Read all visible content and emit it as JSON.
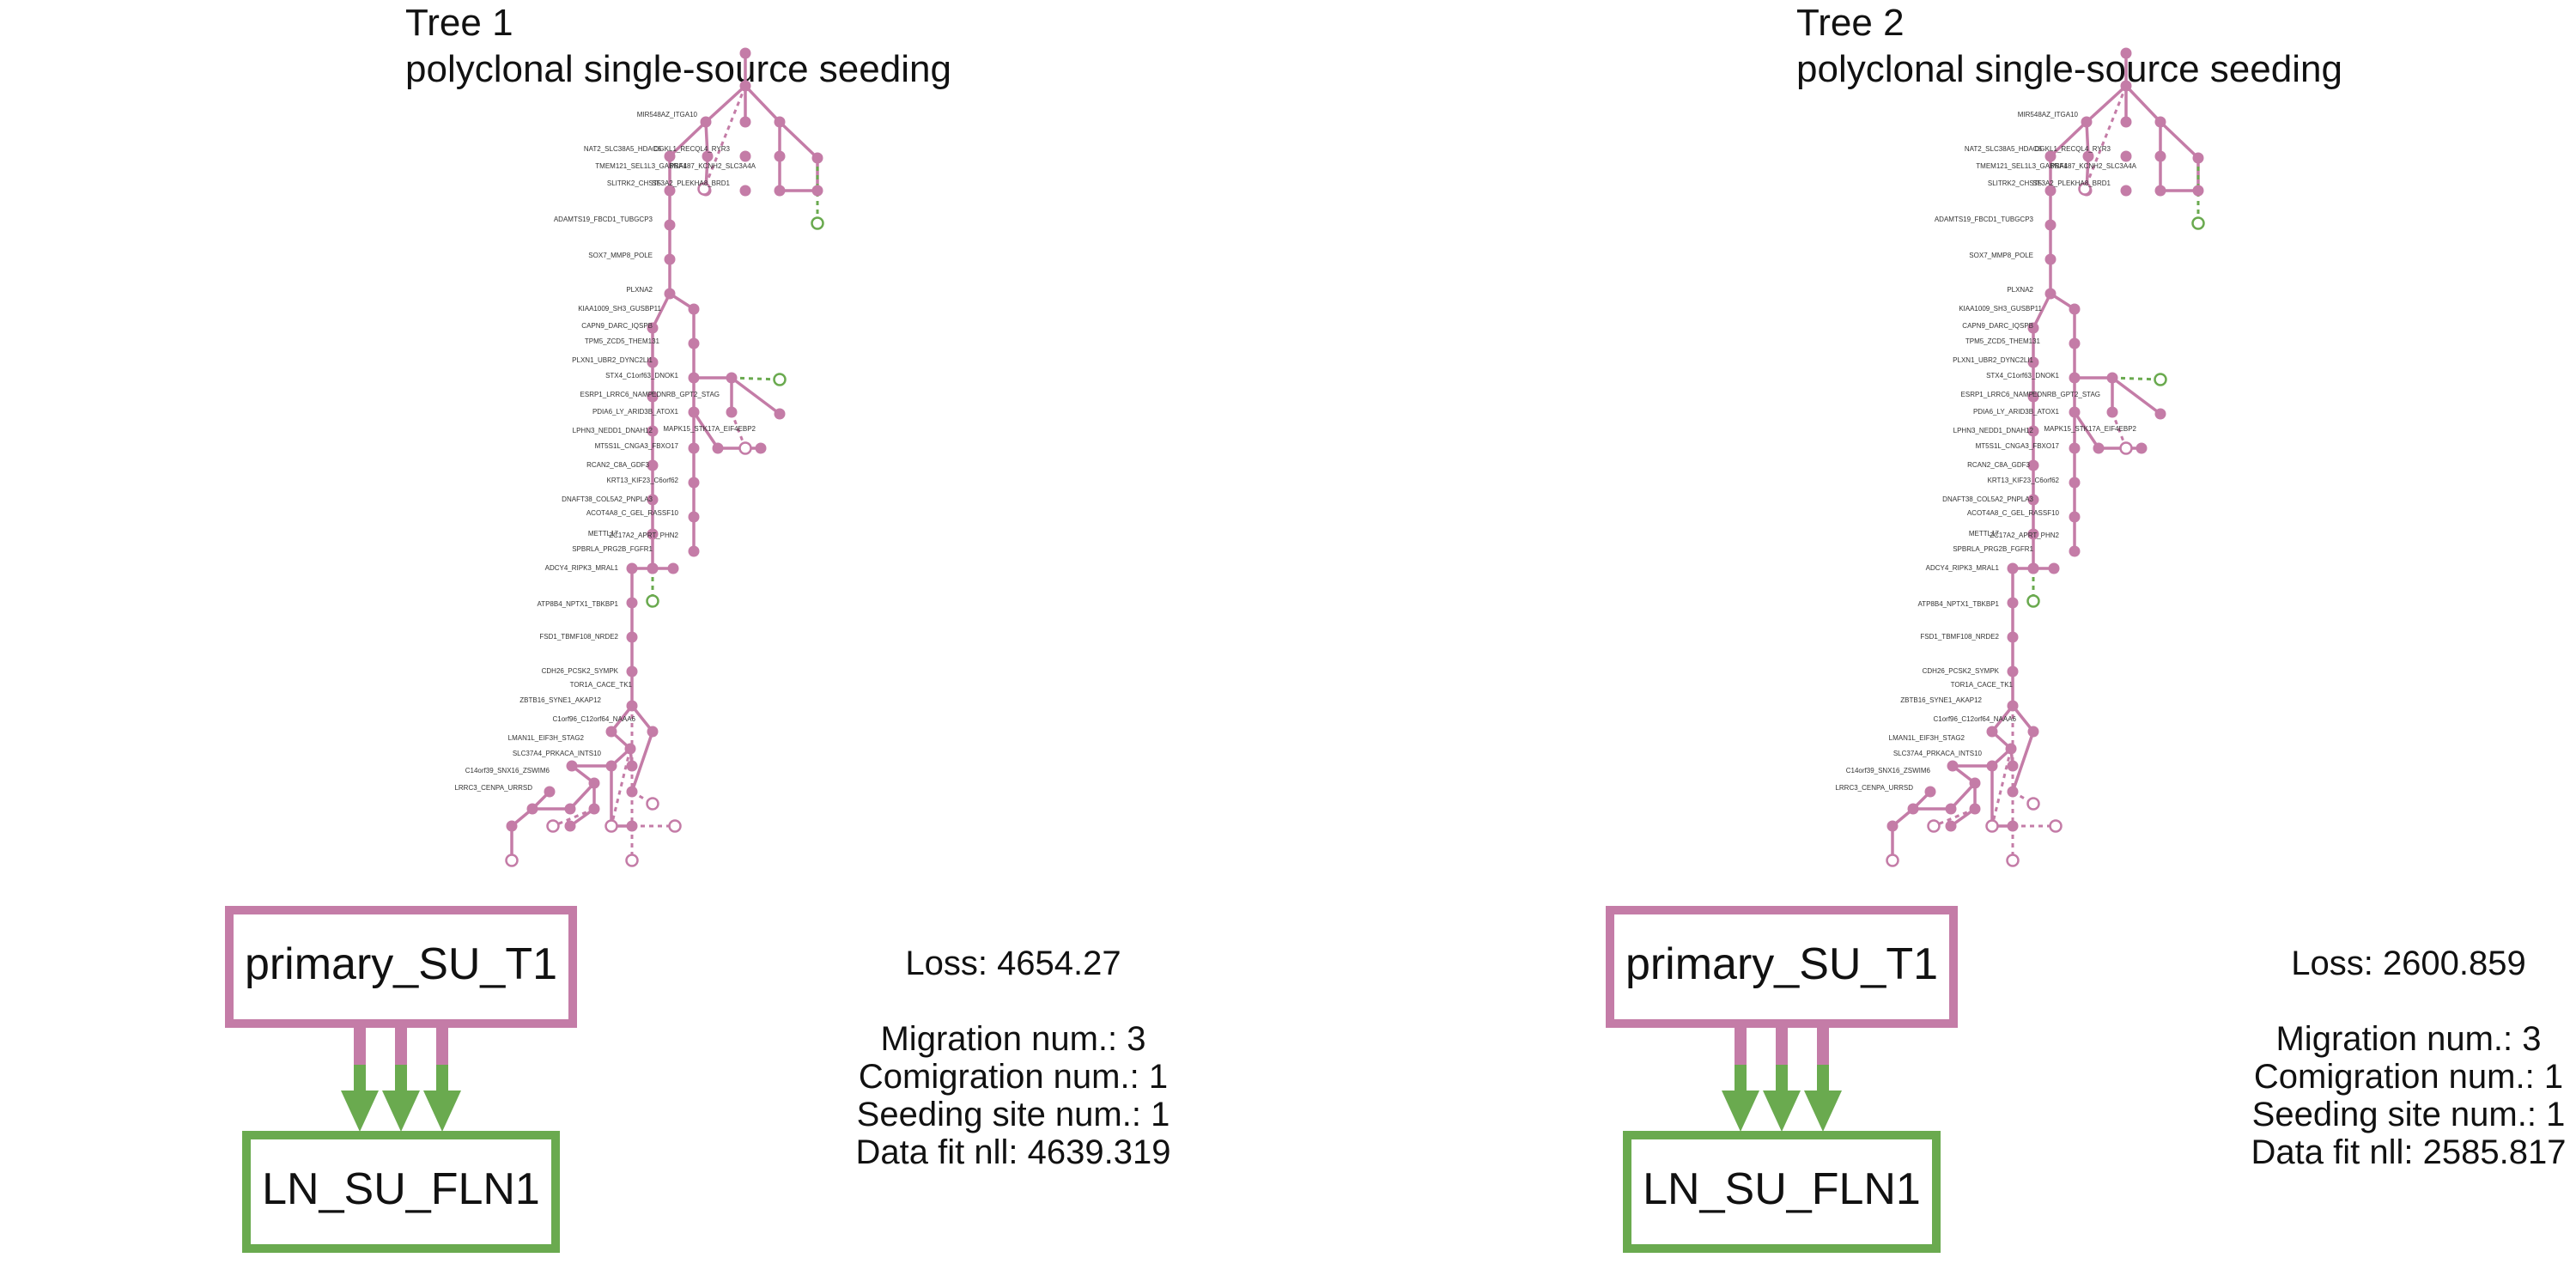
{
  "colors": {
    "primary": "#c47ca7",
    "lymph_node": "#6aaa4f",
    "text": "#111111"
  },
  "panels": [
    {
      "title": "Tree 1",
      "subtitle": "polyclonal single-source seeding",
      "source_site": "primary_SU_T1",
      "target_site": "LN_SU_FLN1",
      "migration_edges": 3,
      "stats": {
        "loss": "Loss: 4654.27",
        "migration": "Migration num.: 3",
        "comigration": "Comigration num.: 1",
        "seeding": "Seeding site num.: 1",
        "datafit": "Data fit nll: 4639.319"
      }
    },
    {
      "title": "Tree 2",
      "subtitle": "polyclonal single-source seeding",
      "source_site": "primary_SU_T1",
      "target_site": "LN_SU_FLN1",
      "migration_edges": 3,
      "stats": {
        "loss": "Loss: 2600.859",
        "migration": "Migration num.: 3",
        "comigration": "Comigration num.: 1",
        "seeding": "Seeding site num.: 1",
        "datafit": "Data fit nll: 2585.817"
      }
    }
  ],
  "tree_labels": [
    "MIR548AZ_ITGA10",
    "NAT2_SLC38A5_HDAC6",
    "DGKL1_RECQL4_RYR3",
    "TMEM121_SEL1L3_GABRA4",
    "PSF187_KCNH2_SLC3A4A",
    "SLITRK2_CHST5",
    "SF3A2_PLEKHA8_BRD1",
    "ADAMTS19_FBCD1_TUBGCP3",
    "SOX7_MMP8_POLE",
    "PLXNA2",
    "KIAA1009_SH3_GUSBP11",
    "CAPN9_DARC_IQSPB",
    "TPM5_ZCD5_THEM131",
    "PLXN1_UBR2_DYNC2LI1",
    "STX4_C1orf63_DNOK1",
    "ESRP1_LRRC6_NAMP",
    "EDNRB_GPT2_STAG",
    "PDIA6_LY_ARID3B_ATOX1",
    "LPHN3_NEDD1_DNAH12",
    "MAPK15_STK17A_EIF4EBP2",
    "MT5S1L_CNGA3_FBXO17",
    "RCAN2_C8A_GDF3",
    "KRT13_KIF23_C6orf62",
    "DNAFT38_COL5A2_PNPLA3",
    "ACOT4A8_C_GEL_RASSF10",
    "METTL17",
    "SPBRLA_PRG2B_FGFR1",
    "ZC17A2_APRT_PHN2",
    "ADCY4_RIPK3_MRAL1",
    "ATP8B4_NPTX1_TBKBP1",
    "FSD1_TBMF108_NRDE2",
    "CDH26_PCSK2_SYMPK",
    "TOR1A_CACE_TK1",
    "ZBTB16_SYNE1_AKAP12",
    "C1orf96_C12orf64_NAAA6",
    "LMAN1L_EIF3H_STAG2",
    "SLC37A4_PRKACA_INTS10",
    "C14orf39_SNX16_ZSWIM6",
    "LRRC3_CENPA_URRSD"
  ]
}
